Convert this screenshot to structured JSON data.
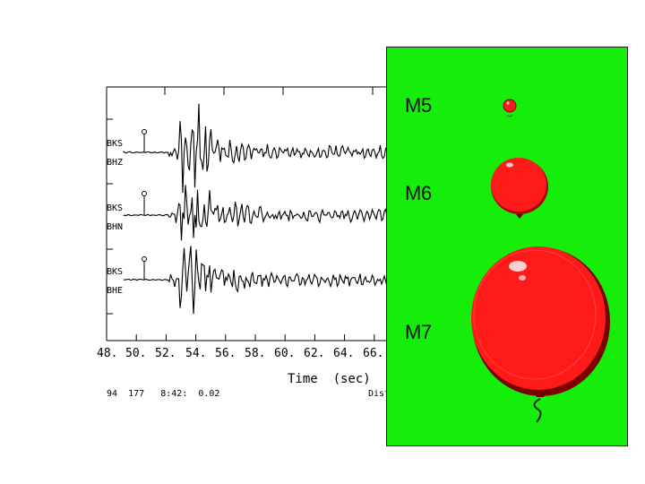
{
  "seismogram": {
    "stations": [
      {
        "station": "BKS",
        "channel": "BHZ"
      },
      {
        "station": "BKS",
        "channel": "BHN"
      },
      {
        "station": "BKS",
        "channel": "BHE"
      }
    ],
    "time_ticks": [
      "48.",
      "50.",
      "52.",
      "54.",
      "56.",
      "58.",
      "60.",
      "62.",
      "64.",
      "66."
    ],
    "xlabel": "Time  (sec)",
    "footer": "94  177   8:42:  0.02",
    "footer_right": "Dist="
  },
  "panel": {
    "background": "#14ee0a",
    "balloon_color": "#ff1a1a",
    "magnitudes": [
      {
        "label": "M5"
      },
      {
        "label": "M6"
      },
      {
        "label": "M7"
      }
    ]
  }
}
